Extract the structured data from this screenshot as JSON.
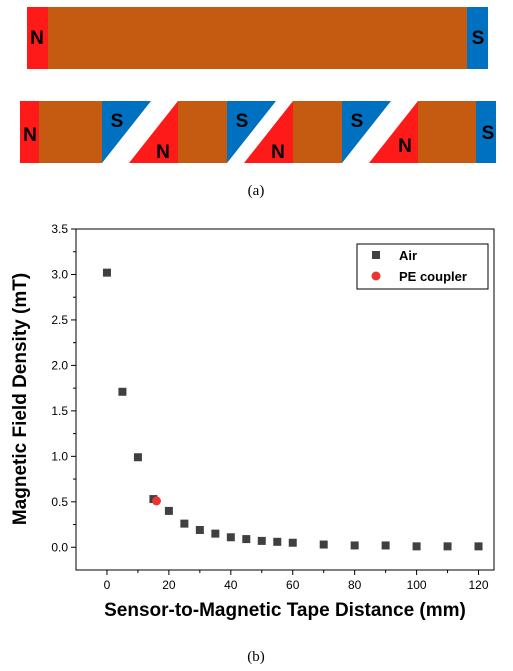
{
  "figure": {
    "caption_a": "(a)",
    "caption_b": "(b)",
    "colors": {
      "north": "#ff1a1a",
      "south": "#0070c0",
      "body": "#c55a11"
    },
    "magnet_single": {
      "left_pole": "N",
      "right_pole": "S"
    },
    "magnet_chain": {
      "poles": [
        "N",
        "S",
        "N",
        "S",
        "N",
        "S",
        "N",
        "S"
      ]
    }
  },
  "chart_data": {
    "type": "scatter",
    "title": "",
    "xlabel": "Sensor-to-Magnetic Tape Distance (mm)",
    "ylabel": "Magnetic Field Density (mT)",
    "xlim": [
      -10,
      125
    ],
    "ylim": [
      -0.25,
      3.5
    ],
    "x_ticks": [
      0,
      20,
      40,
      60,
      80,
      100,
      120
    ],
    "y_ticks": [
      "0.0",
      "0.5",
      "1.0",
      "1.5",
      "2.0",
      "2.5",
      "3.0",
      "3.5"
    ],
    "legend_position": "top-right",
    "grid": false,
    "series": [
      {
        "name": "Air",
        "marker": "square",
        "color": "#404040",
        "x": [
          0,
          5,
          10,
          15,
          20,
          25,
          30,
          35,
          40,
          45,
          50,
          55,
          60,
          70,
          80,
          90,
          100,
          110,
          120
        ],
        "y": [
          3.02,
          1.71,
          0.99,
          0.53,
          0.4,
          0.26,
          0.19,
          0.15,
          0.11,
          0.09,
          0.07,
          0.06,
          0.05,
          0.03,
          0.02,
          0.02,
          0.01,
          0.01,
          0.01
        ]
      },
      {
        "name": "PE coupler",
        "marker": "circle",
        "color": "#ee3333",
        "x": [
          16
        ],
        "y": [
          0.51
        ]
      }
    ]
  }
}
